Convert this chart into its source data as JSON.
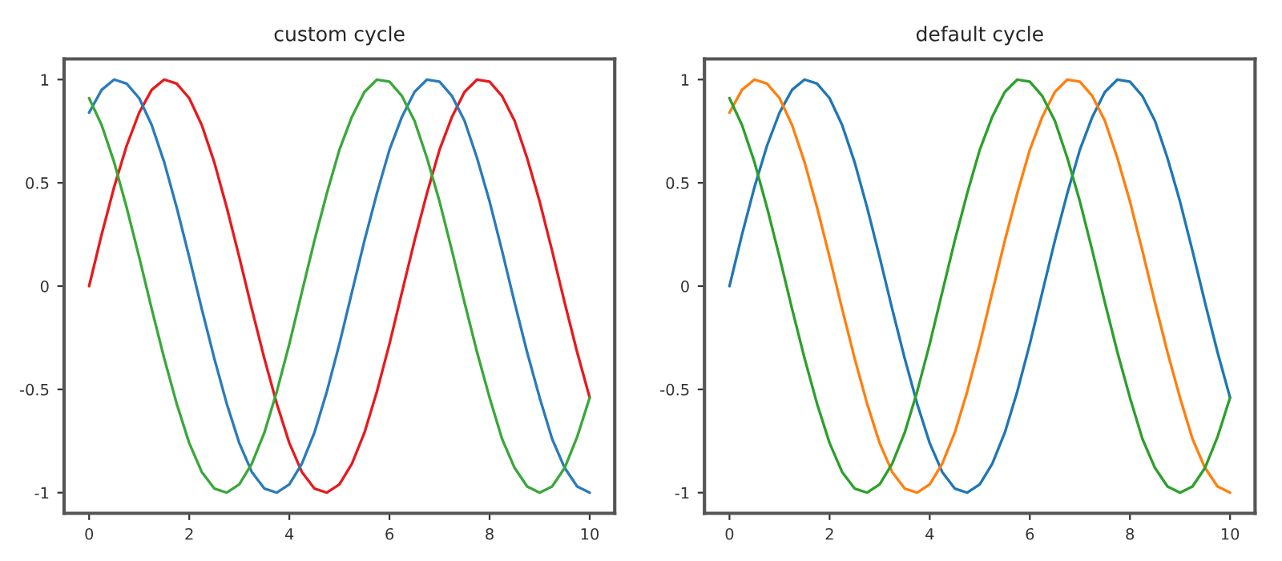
{
  "chart_data": [
    {
      "type": "line",
      "title": "custom cycle",
      "xlim": [
        -0.5,
        10.5
      ],
      "ylim": [
        -1.1,
        1.1
      ],
      "xticks": [
        0,
        2,
        4,
        6,
        8,
        10
      ],
      "yticks": [
        -1,
        -0.5,
        0,
        0.5,
        1
      ],
      "grid": false,
      "x": [
        0,
        0.25,
        0.5,
        0.75,
        1,
        1.25,
        1.5,
        1.75,
        2,
        2.25,
        2.5,
        2.75,
        3,
        3.25,
        3.5,
        3.75,
        4,
        4.25,
        4.5,
        4.75,
        5,
        5.25,
        5.5,
        5.75,
        6,
        6.25,
        6.5,
        6.75,
        7,
        7.25,
        7.5,
        7.75,
        8,
        8.25,
        8.5,
        8.75,
        9,
        9.25,
        9.5,
        9.75,
        10
      ],
      "series": [
        {
          "color": "#e8191d",
          "values": [
            0,
            0.25,
            0.48,
            0.68,
            0.84,
            0.95,
            1.0,
            0.98,
            0.91,
            0.78,
            0.6,
            0.38,
            0.14,
            -0.11,
            -0.35,
            -0.57,
            -0.76,
            -0.9,
            -0.98,
            -1.0,
            -0.96,
            -0.86,
            -0.71,
            -0.51,
            -0.28,
            -0.03,
            0.22,
            0.45,
            0.66,
            0.82,
            0.94,
            1.0,
            0.99,
            0.92,
            0.8,
            0.62,
            0.41,
            0.17,
            -0.08,
            -0.32,
            -0.54
          ]
        },
        {
          "color": "#2b7bba",
          "values": [
            0.84,
            0.95,
            1.0,
            0.98,
            0.91,
            0.78,
            0.6,
            0.38,
            0.14,
            -0.11,
            -0.35,
            -0.57,
            -0.76,
            -0.9,
            -0.98,
            -1.0,
            -0.96,
            -0.86,
            -0.71,
            -0.51,
            -0.28,
            -0.03,
            0.22,
            0.45,
            0.66,
            0.82,
            0.94,
            1.0,
            0.99,
            0.92,
            0.8,
            0.62,
            0.41,
            0.17,
            -0.08,
            -0.32,
            -0.54,
            -0.74,
            -0.88,
            -0.97,
            -1.0
          ]
        },
        {
          "color": "#3aa83a",
          "values": [
            0.91,
            0.78,
            0.6,
            0.38,
            0.14,
            -0.11,
            -0.35,
            -0.57,
            -0.76,
            -0.9,
            -0.98,
            -1.0,
            -0.96,
            -0.86,
            -0.71,
            -0.51,
            -0.28,
            -0.03,
            0.22,
            0.45,
            0.66,
            0.82,
            0.94,
            1.0,
            0.99,
            0.92,
            0.8,
            0.62,
            0.41,
            0.17,
            -0.08,
            -0.32,
            -0.54,
            -0.74,
            -0.88,
            -0.97,
            -1.0,
            -0.97,
            -0.88,
            -0.73,
            -0.54
          ]
        }
      ]
    },
    {
      "type": "line",
      "title": "default cycle",
      "xlim": [
        -0.5,
        10.5
      ],
      "ylim": [
        -1.1,
        1.1
      ],
      "xticks": [
        0,
        2,
        4,
        6,
        8,
        10
      ],
      "yticks": [
        -1,
        -0.5,
        0,
        0.5,
        1
      ],
      "grid": false,
      "x": [
        0,
        0.25,
        0.5,
        0.75,
        1,
        1.25,
        1.5,
        1.75,
        2,
        2.25,
        2.5,
        2.75,
        3,
        3.25,
        3.5,
        3.75,
        4,
        4.25,
        4.5,
        4.75,
        5,
        5.25,
        5.5,
        5.75,
        6,
        6.25,
        6.5,
        6.75,
        7,
        7.25,
        7.5,
        7.75,
        8,
        8.25,
        8.5,
        8.75,
        9,
        9.25,
        9.5,
        9.75,
        10
      ],
      "series": [
        {
          "color": "#1f77b4",
          "values": [
            0,
            0.25,
            0.48,
            0.68,
            0.84,
            0.95,
            1.0,
            0.98,
            0.91,
            0.78,
            0.6,
            0.38,
            0.14,
            -0.11,
            -0.35,
            -0.57,
            -0.76,
            -0.9,
            -0.98,
            -1.0,
            -0.96,
            -0.86,
            -0.71,
            -0.51,
            -0.28,
            -0.03,
            0.22,
            0.45,
            0.66,
            0.82,
            0.94,
            1.0,
            0.99,
            0.92,
            0.8,
            0.62,
            0.41,
            0.17,
            -0.08,
            -0.32,
            -0.54
          ]
        },
        {
          "color": "#ff7f0e",
          "values": [
            0.84,
            0.95,
            1.0,
            0.98,
            0.91,
            0.78,
            0.6,
            0.38,
            0.14,
            -0.11,
            -0.35,
            -0.57,
            -0.76,
            -0.9,
            -0.98,
            -1.0,
            -0.96,
            -0.86,
            -0.71,
            -0.51,
            -0.28,
            -0.03,
            0.22,
            0.45,
            0.66,
            0.82,
            0.94,
            1.0,
            0.99,
            0.92,
            0.8,
            0.62,
            0.41,
            0.17,
            -0.08,
            -0.32,
            -0.54,
            -0.74,
            -0.88,
            -0.97,
            -1.0
          ]
        },
        {
          "color": "#2ca02c",
          "values": [
            0.91,
            0.78,
            0.6,
            0.38,
            0.14,
            -0.11,
            -0.35,
            -0.57,
            -0.76,
            -0.9,
            -0.98,
            -1.0,
            -0.96,
            -0.86,
            -0.71,
            -0.51,
            -0.28,
            -0.03,
            0.22,
            0.45,
            0.66,
            0.82,
            0.94,
            1.0,
            0.99,
            0.92,
            0.8,
            0.62,
            0.41,
            0.17,
            -0.08,
            -0.32,
            -0.54,
            -0.74,
            -0.88,
            -0.97,
            -1.0,
            -0.97,
            -0.88,
            -0.73,
            -0.54
          ]
        }
      ]
    }
  ]
}
